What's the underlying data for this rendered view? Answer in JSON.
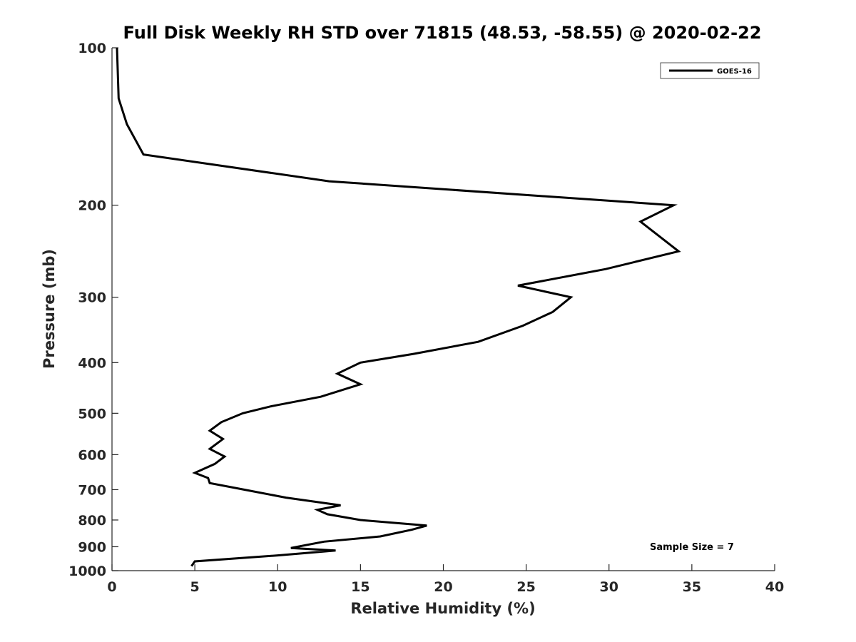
{
  "chart_data": {
    "type": "line",
    "title": "Full Disk Weekly RH STD over 71815 (48.53, -58.55) @ 2020-02-22",
    "xlabel": "Relative Humidity (%)",
    "ylabel": "Pressure (mb)",
    "xlim": [
      0,
      40
    ],
    "ylim": [
      100,
      1000
    ],
    "y_scale": "log",
    "y_reversed": true,
    "x_ticks": [
      0,
      5,
      10,
      15,
      20,
      25,
      30,
      35,
      40
    ],
    "y_ticks": [
      100,
      200,
      300,
      400,
      500,
      600,
      700,
      800,
      900,
      1000
    ],
    "grid": false,
    "legend_position": "top-right",
    "series": [
      {
        "name": "GOES-16",
        "color": "#000000",
        "x": [
          0.3,
          0.4,
          0.9,
          1.9,
          13.1,
          33.9,
          31.9,
          34.2,
          29.8,
          24.5,
          27.7,
          26.6,
          24.8,
          22.1,
          18.2,
          15.0,
          13.6,
          15.0,
          12.6,
          9.6,
          7.9,
          6.6,
          5.9,
          6.7,
          5.9,
          6.8,
          6.2,
          5.0,
          5.8,
          5.9,
          8.0,
          10.5,
          13.8,
          12.4,
          13.0,
          15.0,
          19.0,
          18.1,
          16.2,
          12.8,
          10.8,
          13.5,
          10.0,
          5.0,
          4.8
        ],
        "y": [
          100,
          125,
          140,
          160,
          180,
          200,
          215,
          245,
          265,
          285,
          300,
          320,
          340,
          365,
          385,
          400,
          420,
          440,
          465,
          485,
          500,
          520,
          540,
          560,
          585,
          605,
          625,
          650,
          665,
          680,
          700,
          725,
          750,
          765,
          780,
          800,
          820,
          835,
          860,
          880,
          905,
          915,
          935,
          960,
          980
        ]
      }
    ],
    "annotations": [
      "Sample Size = 7"
    ]
  }
}
